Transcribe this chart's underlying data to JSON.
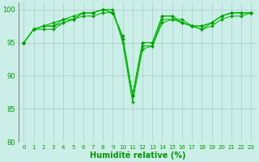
{
  "title": "",
  "xlabel": "Humidité relative (%)",
  "ylabel": "",
  "background_color": "#cceee8",
  "grid_color": "#aad4cc",
  "line_color": "#00bb00",
  "marker_color": "#009900",
  "text_color": "#009900",
  "ylim": [
    80,
    101
  ],
  "yticks": [
    80,
    85,
    90,
    95,
    100
  ],
  "xlim": [
    -0.5,
    23.5
  ],
  "xticks": [
    0,
    1,
    2,
    3,
    4,
    5,
    6,
    7,
    8,
    9,
    10,
    11,
    12,
    13,
    14,
    15,
    16,
    17,
    18,
    19,
    20,
    21,
    22,
    23
  ],
  "series": [
    [
      95,
      97,
      97,
      97,
      98,
      98.5,
      99.5,
      99.5,
      100,
      100,
      95,
      86,
      94,
      94.5,
      98,
      98.5,
      98.5,
      97.5,
      97,
      97.5,
      98.5,
      99,
      99,
      99.5
    ],
    [
      95,
      97,
      97.5,
      97.5,
      98,
      98.5,
      99,
      99,
      99.5,
      99.5,
      95.5,
      87,
      94.5,
      94.5,
      98.5,
      98.5,
      98,
      97.5,
      97,
      98,
      99,
      99.5,
      99.5,
      99.5
    ],
    [
      95,
      97,
      97.5,
      97.5,
      98.5,
      99,
      99.5,
      99.5,
      100,
      99.5,
      96,
      87,
      95,
      95,
      99,
      99,
      98,
      97.5,
      97.5,
      98,
      99,
      99.5,
      99.5,
      99.5
    ],
    [
      95,
      97,
      97.5,
      98,
      98.5,
      98.5,
      99.5,
      99.5,
      100,
      99.5,
      95.5,
      87,
      95,
      95,
      99,
      99,
      98,
      97.5,
      97.5,
      98,
      99,
      99.5,
      99.5,
      99.5
    ]
  ],
  "figsize": [
    3.2,
    2.0
  ],
  "dpi": 100,
  "left_spine_color": "#888888",
  "xlabel_fontsize": 7,
  "xlabel_bold": true
}
